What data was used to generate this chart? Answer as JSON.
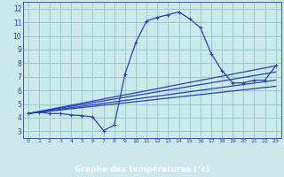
{
  "xlabel": "Graphe des températures (°c)",
  "bg_color": "#cce8e8",
  "grid_color": "#99cccc",
  "line_color": "#2244bb",
  "xaxis_bg": "#2244bb",
  "xaxis_fg": "#ffffff",
  "xlim": [
    -0.5,
    23.5
  ],
  "ylim": [
    2.5,
    12.5
  ],
  "xticks": [
    0,
    1,
    2,
    3,
    4,
    5,
    6,
    7,
    8,
    9,
    10,
    11,
    12,
    13,
    14,
    15,
    16,
    17,
    18,
    19,
    20,
    21,
    22,
    23
  ],
  "yticks": [
    3,
    4,
    5,
    6,
    7,
    8,
    9,
    10,
    11,
    12
  ],
  "main_line": {
    "x": [
      0,
      1,
      2,
      3,
      4,
      5,
      6,
      7,
      8,
      9,
      10,
      11,
      12,
      13,
      14,
      15,
      16,
      17,
      18,
      19,
      20,
      21,
      22,
      23
    ],
    "y": [
      4.3,
      4.4,
      4.3,
      4.3,
      4.2,
      4.15,
      4.05,
      3.05,
      3.45,
      7.2,
      9.5,
      11.1,
      11.35,
      11.55,
      11.75,
      11.25,
      10.6,
      8.7,
      7.45,
      6.55,
      6.55,
      6.75,
      6.75,
      7.8
    ]
  },
  "line2": {
    "x": [
      0,
      23
    ],
    "y": [
      4.3,
      6.3
    ]
  },
  "line3": {
    "x": [
      0,
      23
    ],
    "y": [
      4.3,
      6.75
    ]
  },
  "line4": {
    "x": [
      0,
      23
    ],
    "y": [
      4.3,
      7.35
    ]
  },
  "line5": {
    "x": [
      0,
      23
    ],
    "y": [
      4.3,
      7.8
    ]
  }
}
